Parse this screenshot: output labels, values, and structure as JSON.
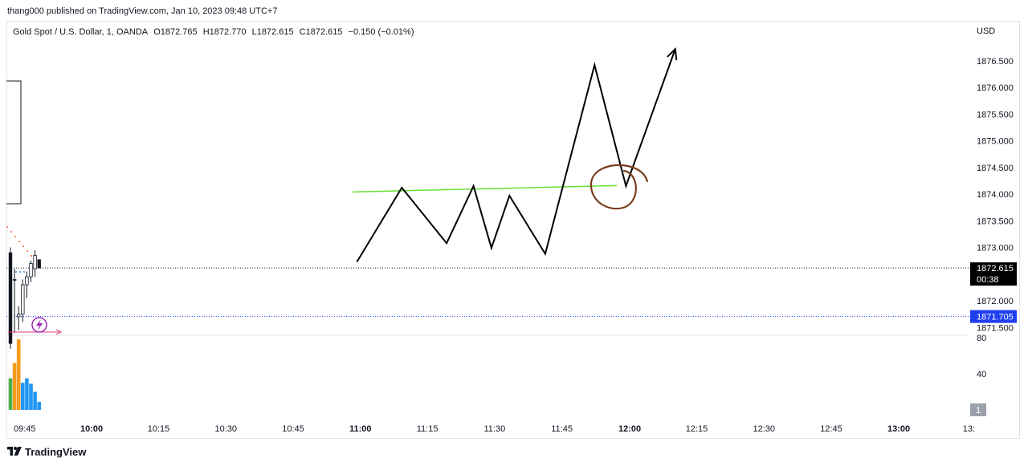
{
  "header": {
    "published_line": "thang000 published on TradingView.com, Jan 10, 2023 09:48 UTC+7"
  },
  "symbol": {
    "name": "Gold Spot / U.S. Dollar, 1, OANDA",
    "open": "O1872.765",
    "high": "H1872.770",
    "low": "L1872.615",
    "close": "C1872.615",
    "change": "−0.150 (−0.01%)"
  },
  "footer": {
    "brand": "TradingView"
  },
  "icons": {
    "logo": "tradingview-logo-icon",
    "lightning": "lightning-icon"
  },
  "colors": {
    "trendline": "#66e033",
    "drawing": "#000000",
    "circle": "#7a3f1e",
    "last_price_bg": "#000000",
    "marker_price_bg": "#1e3ef0",
    "volume_orange": "#f59b1e",
    "volume_blue": "#2196f3",
    "volume_green": "#4caf50"
  },
  "chart_data": {
    "type": "line",
    "currency": "USD",
    "y_ticks": [
      "1876.500",
      "1876.000",
      "1875.500",
      "1875.000",
      "1874.500",
      "1874.000",
      "1873.500",
      "1873.000",
      "1872.000",
      "1871.500"
    ],
    "x_ticks": [
      {
        "label": "09:45",
        "bold": false
      },
      {
        "label": "10:00",
        "bold": true
      },
      {
        "label": "10:15",
        "bold": false
      },
      {
        "label": "10:30",
        "bold": false
      },
      {
        "label": "10:45",
        "bold": false
      },
      {
        "label": "11:00",
        "bold": true
      },
      {
        "label": "11:15",
        "bold": false
      },
      {
        "label": "11:30",
        "bold": false
      },
      {
        "label": "11:45",
        "bold": false
      },
      {
        "label": "12:00",
        "bold": true
      },
      {
        "label": "12:15",
        "bold": false
      },
      {
        "label": "12:30",
        "bold": false
      },
      {
        "label": "12:45",
        "bold": false
      },
      {
        "label": "13:00",
        "bold": true
      },
      {
        "label": "13:",
        "bold": false
      }
    ],
    "last_price": {
      "value": "1872.615",
      "countdown": "00:38"
    },
    "marker_price": "1871.705",
    "volume_ticks": [
      "80",
      "40"
    ],
    "volume_badge": "1",
    "zigzag_path": [
      {
        "t": "10:59",
        "p": 1872.73
      },
      {
        "t": "11:09",
        "p": 1874.12
      },
      {
        "t": "11:19",
        "p": 1873.08
      },
      {
        "t": "11:25",
        "p": 1874.15
      },
      {
        "t": "11:29",
        "p": 1872.99
      },
      {
        "t": "11:33",
        "p": 1873.97
      },
      {
        "t": "11:41",
        "p": 1872.88
      },
      {
        "t": "11:52",
        "p": 1876.42
      },
      {
        "t": "11:59",
        "p": 1874.15
      },
      {
        "t": "12:10",
        "p": 1876.72
      }
    ],
    "trendline": [
      {
        "t": "10:58",
        "p": 1874.04
      },
      {
        "t": "11:57",
        "p": 1874.16
      }
    ],
    "candles": [
      {
        "t": "09:41",
        "o": 1872.9,
        "h": 1873.0,
        "l": 1871.1,
        "c": 1871.2
      },
      {
        "t": "09:42",
        "o": 1872.4,
        "h": 1872.6,
        "l": 1871.4,
        "c": 1872.4
      },
      {
        "t": "09:43",
        "o": 1871.7,
        "h": 1871.9,
        "l": 1871.45,
        "c": 1871.75
      },
      {
        "t": "09:44",
        "o": 1871.75,
        "h": 1872.4,
        "l": 1871.6,
        "c": 1872.3
      },
      {
        "t": "09:45",
        "o": 1872.3,
        "h": 1872.55,
        "l": 1872.05,
        "c": 1872.45
      },
      {
        "t": "09:46",
        "o": 1872.45,
        "h": 1872.75,
        "l": 1872.35,
        "c": 1872.7
      },
      {
        "t": "09:47",
        "o": 1872.6,
        "h": 1872.95,
        "l": 1872.45,
        "c": 1872.85
      },
      {
        "t": "09:48",
        "o": 1872.77,
        "h": 1872.77,
        "l": 1872.6,
        "c": 1872.62
      }
    ],
    "volume": [
      {
        "t": "09:41",
        "v": 35,
        "color": "green"
      },
      {
        "t": "09:42",
        "v": 52,
        "color": "orange"
      },
      {
        "t": "09:43",
        "v": 78,
        "color": "orange"
      },
      {
        "t": "09:44",
        "v": 30,
        "color": "blue"
      },
      {
        "t": "09:45",
        "v": 35,
        "color": "blue"
      },
      {
        "t": "09:46",
        "v": 29,
        "color": "blue"
      },
      {
        "t": "09:47",
        "v": 20,
        "color": "blue"
      },
      {
        "t": "09:48",
        "v": 9,
        "color": "blue"
      }
    ]
  }
}
